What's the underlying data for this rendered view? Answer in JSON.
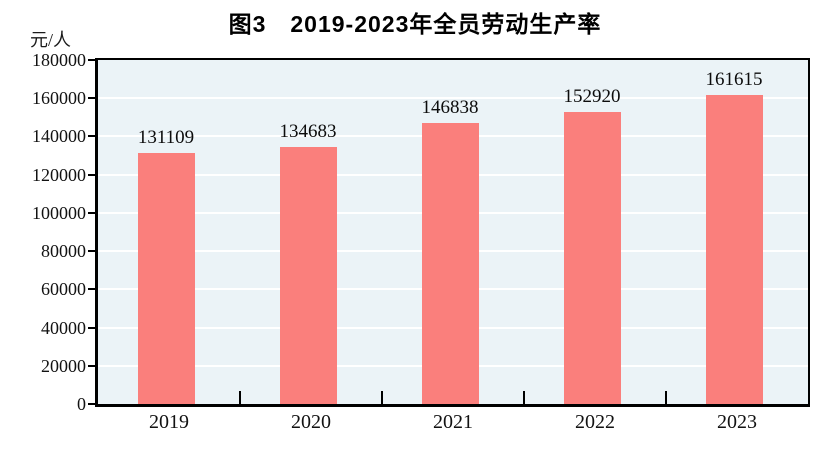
{
  "figure": {
    "title": "图3　2019-2023年全员劳动生产率",
    "y_axis_unit": "元/人"
  },
  "chart_data": {
    "type": "bar",
    "title": "图3　2019-2023年全员劳动生产率",
    "ylabel": "元/人",
    "xlabel": "",
    "categories": [
      "2019",
      "2020",
      "2021",
      "2022",
      "2023"
    ],
    "values": [
      131109,
      134683,
      146838,
      152920,
      161615
    ],
    "data_labels": [
      "131109",
      "134683",
      "146838",
      "152920",
      "161615"
    ],
    "ylim": [
      0,
      180000
    ],
    "ytick_step": 20000,
    "yticks": [
      0,
      20000,
      40000,
      60000,
      80000,
      100000,
      120000,
      140000,
      160000,
      180000
    ],
    "ytick_labels": [
      "0",
      "20000",
      "40000",
      "60000",
      "80000",
      "100000",
      "120000",
      "140000",
      "160000",
      "180000"
    ],
    "grid": true,
    "legend": "none",
    "colors": {
      "bar": "#FA7F7C",
      "plot_background": "#EBF3F7",
      "gridline": "#FFFFFF",
      "axis": "#000000",
      "text": "#111111"
    }
  }
}
